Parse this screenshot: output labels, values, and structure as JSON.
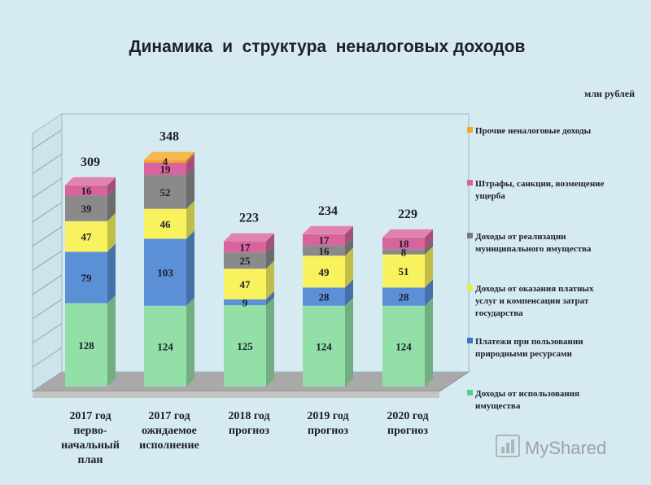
{
  "chart_data": {
    "type": "bar",
    "stacked": true,
    "title": "Динамика  и  структура  неналоговых доходов",
    "unit": "млн рублей",
    "categories": [
      [
        "2017 год",
        "перво-",
        "начальный",
        "план"
      ],
      [
        "2017 год",
        "ожидаемое",
        "исполнение"
      ],
      [
        "2018 год",
        "прогноз"
      ],
      [
        "2019 год",
        "прогноз"
      ],
      [
        "2020 год",
        "прогноз"
      ]
    ],
    "totals": [
      309,
      348,
      223,
      234,
      229
    ],
    "series": [
      {
        "name": "Доходы от использования имущества",
        "color": "#93dfa8",
        "values": [
          128,
          124,
          125,
          124,
          124
        ]
      },
      {
        "name": "Платежи при пользовании природными ресурсами",
        "color": "#5b8fd6",
        "values": [
          79,
          103,
          9,
          28,
          28
        ]
      },
      {
        "name": "Доходы от оказания платных услуг и компенсации затрат государства",
        "color": "#f7f25d",
        "values": [
          47,
          46,
          47,
          49,
          51
        ]
      },
      {
        "name": "Доходы от реализации муниципального имущества",
        "color": "#8a8a8a",
        "values": [
          39,
          52,
          25,
          16,
          8
        ]
      },
      {
        "name": "Штрафы, санкции, возмещение ущерба",
        "color": "#d8649d",
        "values": [
          16,
          19,
          17,
          17,
          18
        ]
      },
      {
        "name": "Прочие неналоговые доходы",
        "color": "#f5a623",
        "values": [
          0,
          4,
          0,
          0,
          0
        ]
      }
    ],
    "legend": [
      {
        "lines": [
          "Прочие неналоговые доходы"
        ],
        "color": "#f5a623"
      },
      {
        "lines": [
          "Штрафы, санкции, возмещение",
          "ущерба"
        ],
        "color": "#d8649d"
      },
      {
        "lines": [
          "Доходы от реализации",
          "муниципального имущества"
        ],
        "color": "#7a7a7a"
      },
      {
        "lines": [
          "Доходы от оказания платных",
          "услуг и компенсации затрат",
          "государства"
        ],
        "color": "#f2e93a"
      },
      {
        "lines": [
          "Платежи при пользовании",
          "природными ресурсами"
        ],
        "color": "#3f72c4"
      },
      {
        "lines": [
          "Доходы от использования",
          "имущества"
        ],
        "color": "#5ccf86"
      }
    ],
    "legend_position": "right",
    "grid": true
  },
  "watermark": "MyShared"
}
